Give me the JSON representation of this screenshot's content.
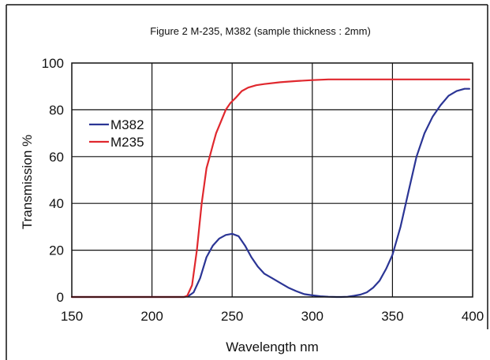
{
  "chart_data": {
    "type": "line",
    "title": "Figure 2  M-235, M382 (sample thickness : 2mm)",
    "xlabel": "Wavelength  nm",
    "ylabel": "Transmission  %",
    "xlim": [
      150,
      400
    ],
    "ylim": [
      0,
      100
    ],
    "xticks": [
      150,
      200,
      250,
      300,
      350,
      400
    ],
    "yticks": [
      0,
      20,
      40,
      60,
      80,
      100
    ],
    "grid": true,
    "legend_position": "upper-left",
    "series": [
      {
        "name": "M382",
        "color": "#2b3595",
        "x": [
          150,
          200,
          220,
          223,
          226,
          230,
          234,
          238,
          242,
          246,
          250,
          254,
          258,
          262,
          266,
          270,
          275,
          280,
          285,
          290,
          295,
          300,
          305,
          310,
          315,
          318,
          322,
          326,
          330,
          334,
          338,
          342,
          346,
          350,
          355,
          360,
          365,
          370,
          375,
          380,
          385,
          390,
          395,
          398
        ],
        "y": [
          0,
          0,
          0,
          0.5,
          2,
          8,
          17,
          22,
          25,
          26.5,
          27,
          26,
          22,
          17,
          13,
          10,
          8,
          6,
          4,
          2.5,
          1.2,
          0.7,
          0.3,
          0.1,
          0,
          0,
          0.1,
          0.5,
          1,
          2,
          4,
          7,
          12,
          18,
          30,
          45,
          60,
          70,
          77,
          82,
          86,
          88,
          89,
          89
        ]
      },
      {
        "name": "M235",
        "color": "#e0282e",
        "x": [
          150,
          200,
          220,
          222,
          225,
          228,
          231,
          234,
          236,
          238,
          240,
          243,
          246,
          249,
          252,
          256,
          260,
          265,
          270,
          280,
          290,
          300,
          310,
          330,
          350,
          370,
          390,
          398
        ],
        "y": [
          0,
          0,
          0,
          0.5,
          5,
          20,
          40,
          55,
          60,
          65,
          70,
          75,
          80,
          83,
          85,
          88,
          89.5,
          90.5,
          91,
          91.8,
          92.3,
          92.7,
          93,
          93,
          93,
          93,
          93,
          93
        ]
      }
    ]
  }
}
